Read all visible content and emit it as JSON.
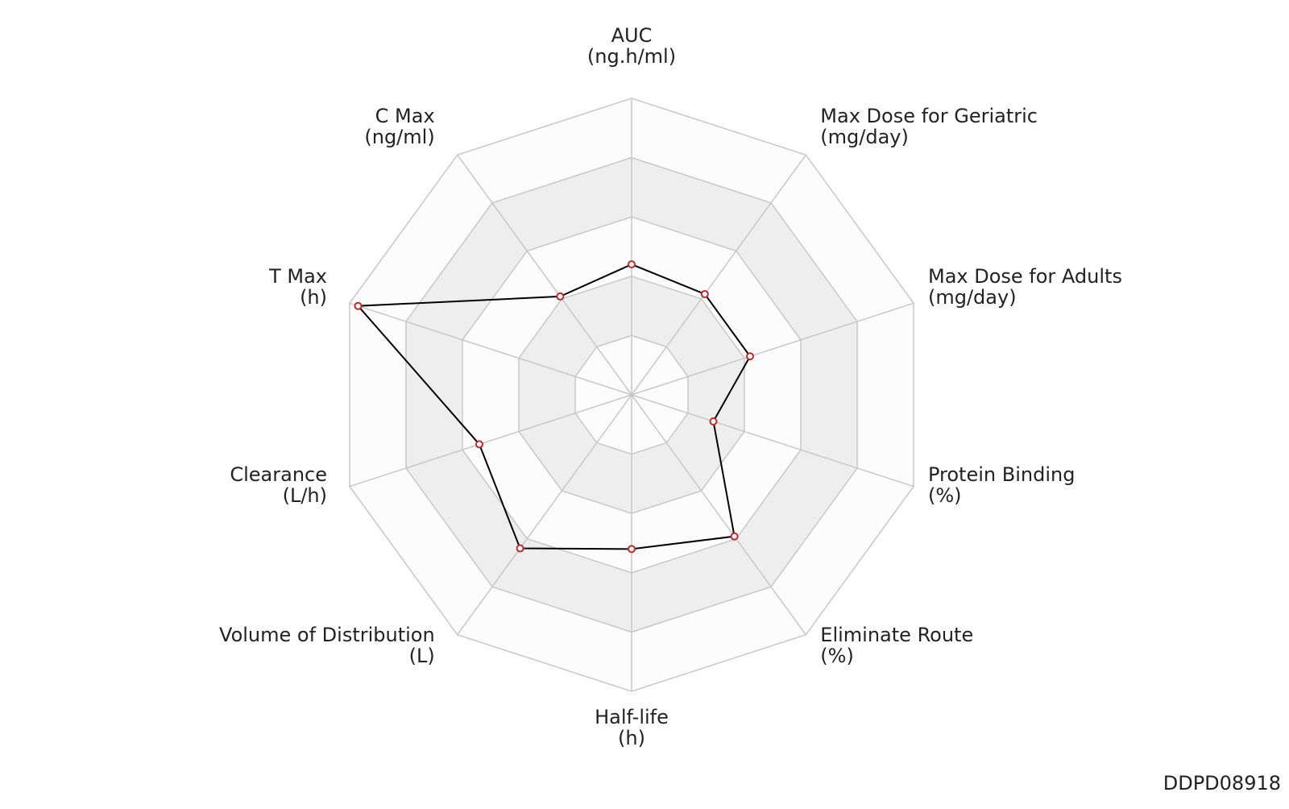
{
  "chart_data": {
    "type": "radar",
    "categories": [
      "AUC",
      "Max Dose for Geriatric",
      "Max Dose for Adults",
      "Protein Binding",
      "Eliminate Route",
      "Half-life",
      "Volume of Distribution",
      "Clearance",
      "T Max",
      "C Max"
    ],
    "units": [
      "(ng.h/ml)",
      "(mg/day)",
      "(mg/day)",
      "(%)",
      "(%)",
      "(h)",
      "(L)",
      "(L/h)",
      "(h)",
      "(ng/ml)"
    ],
    "values": [
      0.44,
      0.42,
      0.42,
      0.29,
      0.59,
      0.52,
      0.64,
      0.54,
      0.97,
      0.41
    ],
    "rlim": [
      0,
      1
    ],
    "rticks": [
      0.2,
      0.4,
      0.6,
      0.8,
      1
    ],
    "color": "#000000",
    "marker_color": "#c62828",
    "footer": "DDPD08918"
  }
}
